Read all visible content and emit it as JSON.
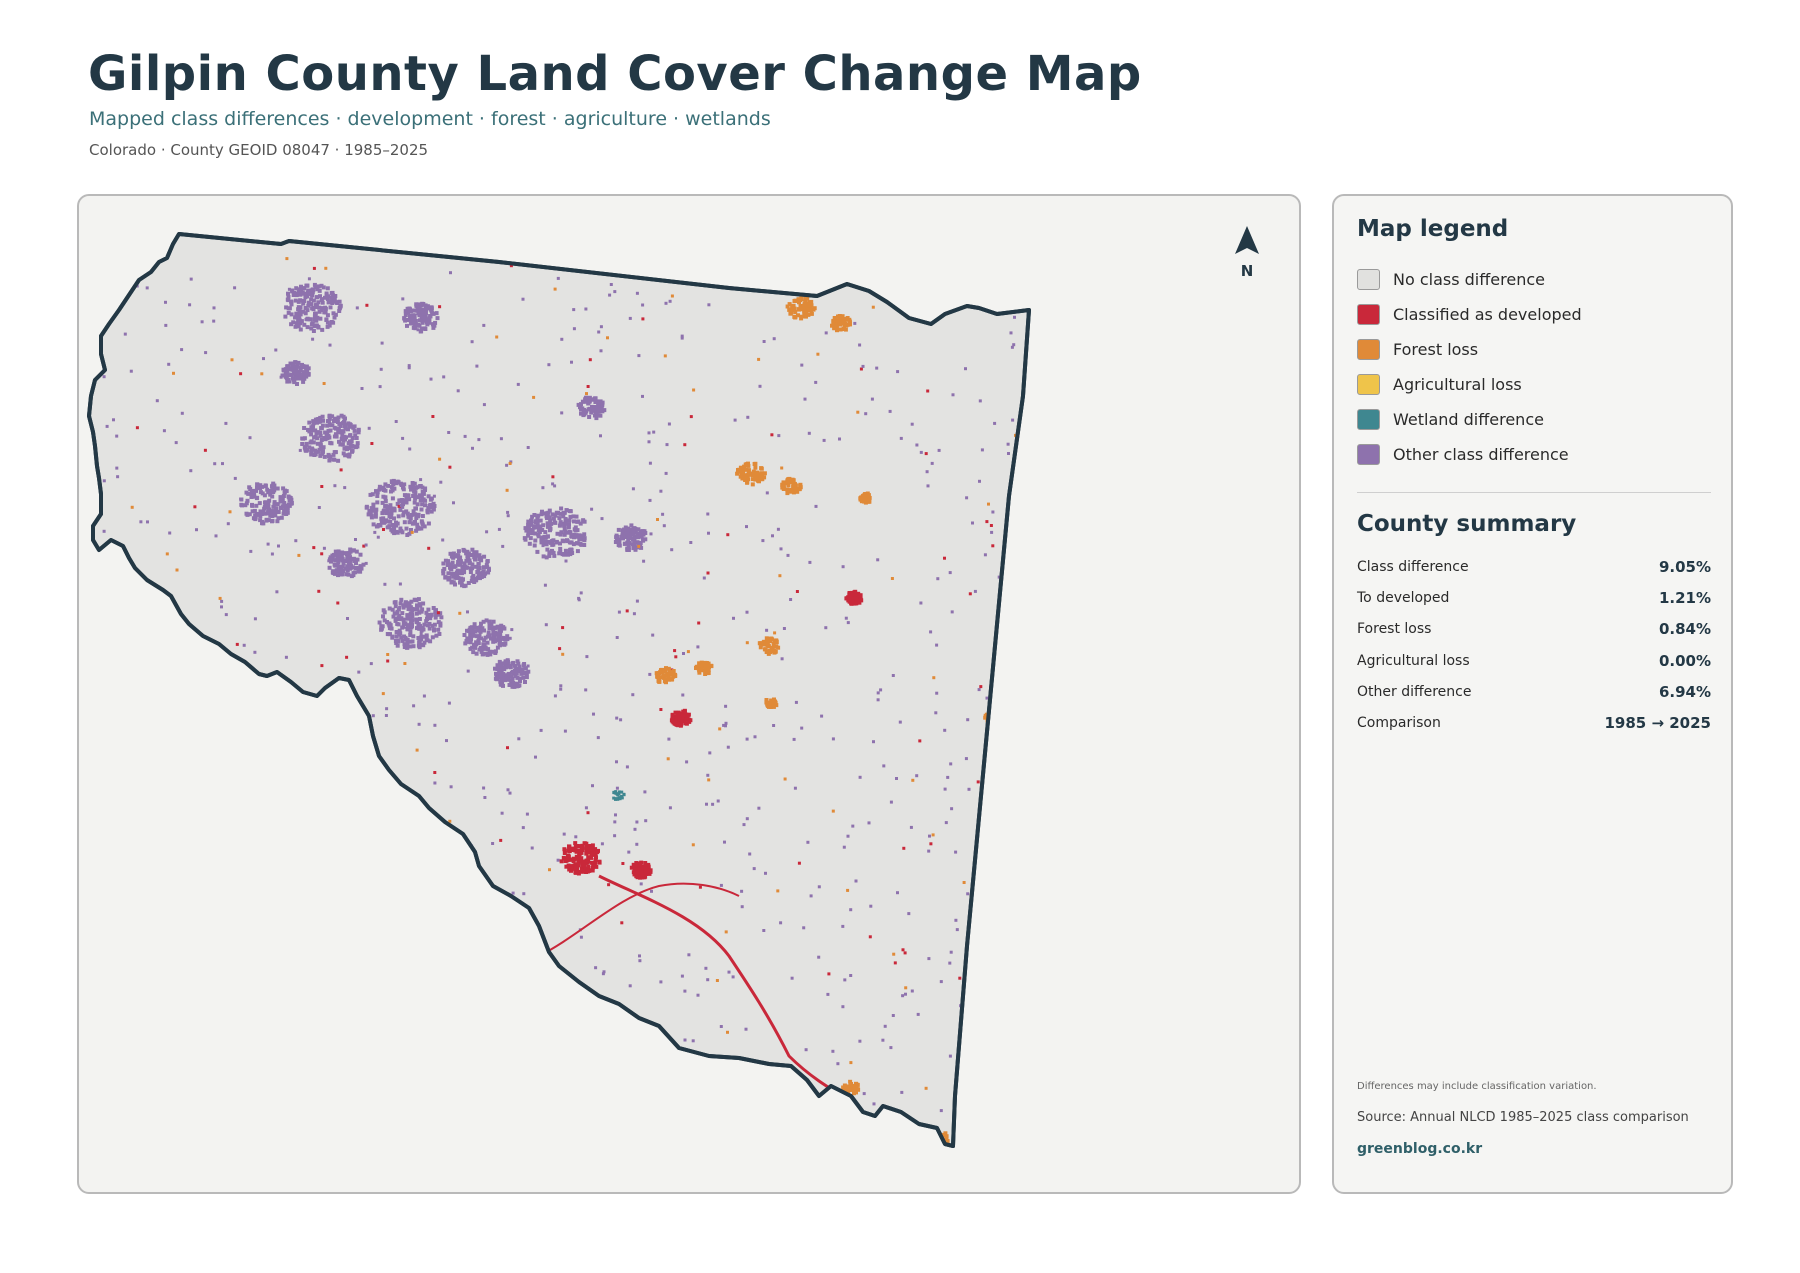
{
  "header": {
    "title": "Gilpin County Land Cover Change Map",
    "subtitle": "Mapped class differences · development · forest · agriculture · wetlands",
    "meta": "Colorado · County GEOID 08047 · 1985–2025"
  },
  "map": {
    "north_label": "N",
    "fill_color": "#e3e3e1",
    "outline_color": "#233845"
  },
  "legend": {
    "title": "Map legend",
    "items": [
      {
        "label": "No class difference",
        "color": "#e1e1df"
      },
      {
        "label": "Classified as developed",
        "color": "#c9283a"
      },
      {
        "label": "Forest loss",
        "color": "#e08a38"
      },
      {
        "label": "Agricultural loss",
        "color": "#efc44a"
      },
      {
        "label": "Wetland difference",
        "color": "#3f8790"
      },
      {
        "label": "Other class difference",
        "color": "#8e72ad"
      }
    ]
  },
  "summary": {
    "title": "County summary",
    "rows": [
      {
        "label": "Class difference",
        "value": "9.05%"
      },
      {
        "label": "To developed",
        "value": "1.21%"
      },
      {
        "label": "Forest loss",
        "value": "0.84%"
      },
      {
        "label": "Agricultural loss",
        "value": "0.00%"
      },
      {
        "label": "Other difference",
        "value": "6.94%"
      },
      {
        "label": "Comparison",
        "value": "1985 → 2025"
      }
    ]
  },
  "footer": {
    "note": "Differences may include classification variation.",
    "source": "Source: Annual NLCD 1985–2025 class comparison",
    "site": "greenblog.co.kr"
  }
}
